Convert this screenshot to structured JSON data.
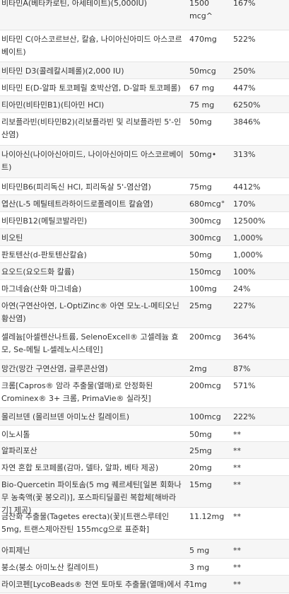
{
  "rows": [
    {
      "name": "비타민A(베타카로틴, 아세테이트)(5,000IU)",
      "amount": "1500 mcg^",
      "dv": "167%"
    },
    {
      "name": "비타민 C(아스코르브산, 칼슘, 나이아신아미드 아스코르베이트)",
      "amount": "470mg",
      "dv": "522%"
    },
    {
      "name": "비타민 D3(콜레칼시페롤)(2,000 IU)",
      "amount": "50mcg",
      "dv": "250%"
    },
    {
      "name": "비타민 E(D-알파 토코페릴 호박산염, D-알파 토코페롤)",
      "amount": "67 mg",
      "dv": "447%"
    },
    {
      "name": "티아민(비타민B1)(티아민 HCl)",
      "amount": "75 mg",
      "dv": "6250%"
    },
    {
      "name": "리보플라빈(비타민B2)(리보플라빈 및 리보플라빈 5'-인산염)",
      "amount": "50mg",
      "dv": "3846%"
    },
    {
      "name": "나이아신(나이아신아미드, 나이아신아미드 아스코르베이트)",
      "amount": "50mg•",
      "dv": "313%"
    },
    {
      "name": "비타민B6(피리독신 HCl, 피리독살 5'-염산염)",
      "amount": "75mg",
      "dv": "4412%"
    },
    {
      "name": "엽산(L-5 메틸테트라하이드로폴레이트 칼슘염)",
      "amount": "680mcg°",
      "dv": "170%"
    },
    {
      "name": "비타민B12(메틸코발라민)",
      "amount": "300mcg",
      "dv": "12500%"
    },
    {
      "name": "비오틴",
      "amount": "300mcg",
      "dv": "1,000%"
    },
    {
      "name": "판토텐산(d-판토텐산칼슘)",
      "amount": "50mg",
      "dv": "1,000%"
    },
    {
      "name": "요오드(요오드화 칼륨)",
      "amount": "150mcg",
      "dv": "100%"
    },
    {
      "name": "마그네슘(산화 마그네슘)",
      "amount": "100mg",
      "dv": "24%"
    },
    {
      "name": "아연(구연산아연, L-OptiZinc® 아연 모노-L-메티오닌황산염)",
      "amount": "25mg",
      "dv": "227%"
    },
    {
      "name": "셀레늄[아셀렌산나트륨, SelenoExcell® 고셀레늄 효모, Se-메틸 L-셀레노시스테인]",
      "amount": "200mcg",
      "dv": "364%"
    },
    {
      "name": "망간(망간 구연산염, 글루콘산염)",
      "amount": "2mg",
      "dv": "87%"
    },
    {
      "name": "크롬[Capros® 암라 추출물(열매)로 안정화된 Crominex® 3+ 크롬, PrimaVie® 실라짓]",
      "amount": "200mcg",
      "dv": "571%"
    },
    {
      "name": "몰리브덴 (몰리브덴 아미노산 킬레이트)",
      "amount": "100mcg",
      "dv": "222%"
    },
    {
      "name": "이노시톨",
      "amount": "50mg",
      "dv": "**"
    },
    {
      "name": "알파리포산",
      "amount": "25mg",
      "dv": "**"
    },
    {
      "name": "자연 혼합 토코페롤(감마, 델타, 알파, 베타 제공)",
      "amount": "20mg",
      "dv": "**"
    },
    {
      "name": "Bio-Quercetin 파이토솜(5 mg 퀘르세틴[일본 회화나무 농축액(꽃 봉오리)], 포스파티딜콜린 복합체[해바라기] 제공)",
      "amount": "15mg",
      "dv": "**"
    },
    {
      "name": "금잔화 추출물(Tagetes erecta)(꽃)[트랜스루테인 5mg, 트랜스제아잔틴 155mcg으로 표준화]",
      "amount": "11.12mg",
      "dv": "**"
    },
    {
      "name": "아피제닌",
      "amount": "5 mg",
      "dv": "**"
    },
    {
      "name": "붕소(붕소 아미노산 킬레이트)",
      "amount": "3 mg",
      "dv": "**"
    },
    {
      "name": "라이코펜[LycoBeads® 천연 토마토 추출물(열매)에서 추",
      "amount": "1mg",
      "dv": "**"
    }
  ]
}
